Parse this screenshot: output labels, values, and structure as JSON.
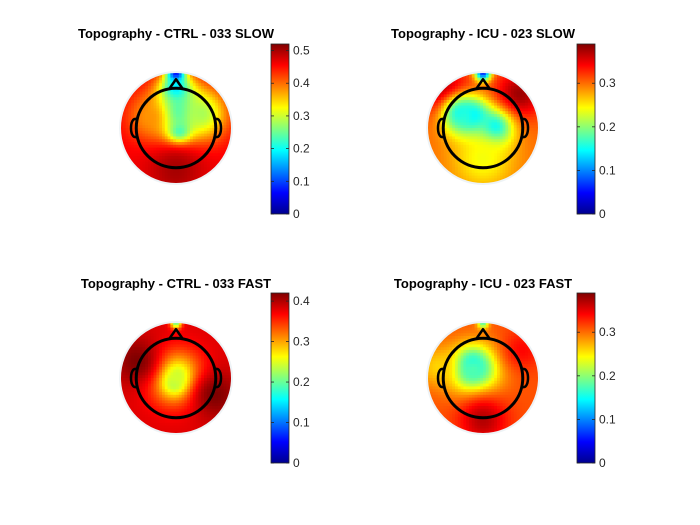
{
  "chart_data": [
    {
      "type": "heatmap",
      "title": "Topography - CTRL - 033 SLOW",
      "colormap": "jet",
      "clim": [
        0,
        0.52
      ],
      "colorbar_ticks": [
        "0",
        "0.1",
        "0.2",
        "0.3",
        "0.4",
        "0.5"
      ],
      "colorbar_tick_values": [
        0,
        0.1,
        0.2,
        0.3,
        0.4,
        0.5
      ],
      "base_value": 0.46,
      "features": [
        {
          "x": 0.0,
          "y": 0.96,
          "value": 0.0,
          "spread": 0.11
        },
        {
          "x": 0.0,
          "y": 0.68,
          "value": 0.15,
          "spread": 0.2
        },
        {
          "x": 0.05,
          "y": -0.05,
          "value": 0.05,
          "spread": 0.14
        },
        {
          "x": 0.0,
          "y": 0.25,
          "value": 0.15,
          "spread": 0.3
        },
        {
          "x": -0.45,
          "y": 0.2,
          "value": 0.38,
          "spread": 0.3
        },
        {
          "x": 0.45,
          "y": 0.25,
          "value": 0.28,
          "spread": 0.32
        },
        {
          "x": 0.0,
          "y": -0.75,
          "value": 0.5,
          "spread": 0.35
        }
      ]
    },
    {
      "type": "heatmap",
      "title": "Topography - ICU - 023 SLOW",
      "colormap": "jet",
      "clim": [
        0,
        0.39
      ],
      "colorbar_ticks": [
        "0",
        "0.1",
        "0.2",
        "0.3"
      ],
      "colorbar_tick_values": [
        0,
        0.1,
        0.2,
        0.3
      ],
      "base_value": 0.3,
      "features": [
        {
          "x": 0.0,
          "y": 0.98,
          "value": 0.03,
          "spread": 0.1
        },
        {
          "x": -0.65,
          "y": 0.6,
          "value": 0.39,
          "spread": 0.3
        },
        {
          "x": 0.65,
          "y": 0.6,
          "value": 0.38,
          "spread": 0.3
        },
        {
          "x": -0.2,
          "y": 0.18,
          "value": 0.1,
          "spread": 0.22
        },
        {
          "x": 0.2,
          "y": -0.02,
          "value": 0.11,
          "spread": 0.22
        },
        {
          "x": -0.4,
          "y": 0.25,
          "value": 0.15,
          "spread": 0.25
        },
        {
          "x": 0.0,
          "y": -0.55,
          "value": 0.24,
          "spread": 0.4
        }
      ]
    },
    {
      "type": "heatmap",
      "title": "Topography - CTRL - 033 FAST",
      "colormap": "jet",
      "clim": [
        0,
        0.42
      ],
      "colorbar_ticks": [
        "0",
        "0.1",
        "0.2",
        "0.3",
        "0.4"
      ],
      "colorbar_tick_values": [
        0,
        0.1,
        0.2,
        0.3,
        0.4
      ],
      "base_value": 0.38,
      "features": [
        {
          "x": 0.0,
          "y": 0.98,
          "value": 0.2,
          "spread": 0.07
        },
        {
          "x": 0.0,
          "y": -0.05,
          "value": 0.1,
          "spread": 0.13
        },
        {
          "x": 0.0,
          "y": 0.0,
          "value": 0.23,
          "spread": 0.32
        },
        {
          "x": -0.7,
          "y": 0.3,
          "value": 0.42,
          "spread": 0.3
        },
        {
          "x": 0.7,
          "y": -0.3,
          "value": 0.42,
          "spread": 0.3
        }
      ]
    },
    {
      "type": "heatmap",
      "title": "Topography - ICU - 023 FAST",
      "colormap": "jet",
      "clim": [
        0,
        0.39
      ],
      "colorbar_ticks": [
        "0",
        "0.1",
        "0.2",
        "0.3"
      ],
      "colorbar_tick_values": [
        0,
        0.1,
        0.2,
        0.3
      ],
      "base_value": 0.31,
      "features": [
        {
          "x": 0.0,
          "y": 0.98,
          "value": 0.18,
          "spread": 0.07
        },
        {
          "x": -0.2,
          "y": 0.2,
          "value": 0.04,
          "spread": 0.17
        },
        {
          "x": -0.15,
          "y": 0.15,
          "value": 0.17,
          "spread": 0.32
        },
        {
          "x": -0.8,
          "y": 0.2,
          "value": 0.26,
          "spread": 0.25
        },
        {
          "x": 0.0,
          "y": -0.75,
          "value": 0.37,
          "spread": 0.3
        },
        {
          "x": 0.7,
          "y": 0.5,
          "value": 0.34,
          "spread": 0.25
        }
      ]
    }
  ]
}
